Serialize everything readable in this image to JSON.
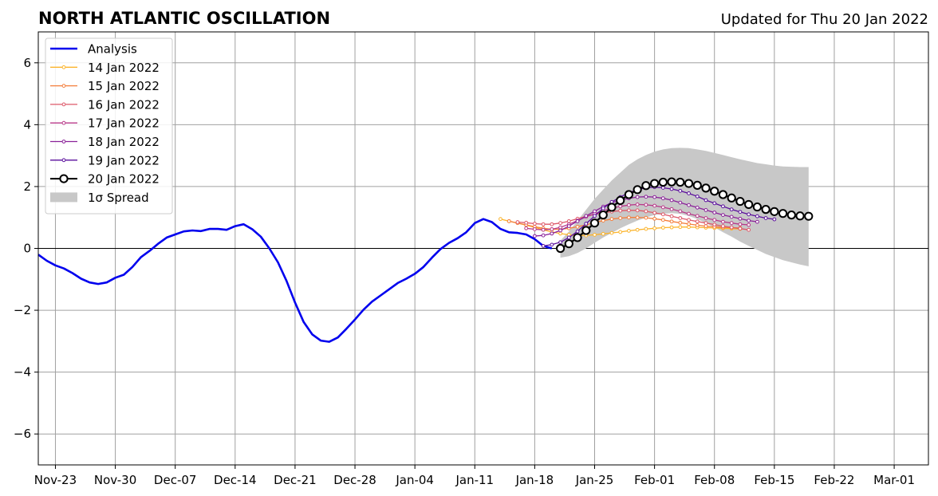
{
  "chart_data": {
    "type": "line",
    "title": "NORTH ATLANTIC OSCILLATION",
    "subtitle": "Updated for Thu 20 Jan 2022",
    "xlabel": "",
    "ylabel": "",
    "grid": true,
    "legend_position": "top-left",
    "x_range": [
      "2021-11-21",
      "2022-03-05"
    ],
    "ylim": [
      -7,
      7
    ],
    "y_ticks": [
      -6,
      -4,
      -2,
      0,
      2,
      4,
      6
    ],
    "x_ticks": [
      {
        "date": "2021-11-23",
        "label": "Nov-23"
      },
      {
        "date": "2021-11-30",
        "label": "Nov-30"
      },
      {
        "date": "2021-12-07",
        "label": "Dec-07"
      },
      {
        "date": "2021-12-14",
        "label": "Dec-14"
      },
      {
        "date": "2021-12-21",
        "label": "Dec-21"
      },
      {
        "date": "2021-12-28",
        "label": "Dec-28"
      },
      {
        "date": "2022-01-04",
        "label": "Jan-04"
      },
      {
        "date": "2022-01-11",
        "label": "Jan-11"
      },
      {
        "date": "2022-01-18",
        "label": "Jan-18"
      },
      {
        "date": "2022-01-25",
        "label": "Jan-25"
      },
      {
        "date": "2022-02-01",
        "label": "Feb-01"
      },
      {
        "date": "2022-02-08",
        "label": "Feb-08"
      },
      {
        "date": "2022-02-15",
        "label": "Feb-15"
      },
      {
        "date": "2022-02-22",
        "label": "Feb-22"
      },
      {
        "date": "2022-03-01",
        "label": "Mar-01"
      }
    ],
    "analysis": {
      "name": "Analysis",
      "color": "#0000ee",
      "start": "2021-11-21",
      "values": [
        -0.2,
        -0.4,
        -0.55,
        -0.65,
        -0.8,
        -0.98,
        -1.1,
        -1.15,
        -1.1,
        -0.95,
        -0.85,
        -0.6,
        -0.28,
        -0.08,
        0.15,
        0.35,
        0.45,
        0.55,
        0.58,
        0.56,
        0.63,
        0.63,
        0.6,
        0.72,
        0.78,
        0.62,
        0.38,
        0.0,
        -0.45,
        -1.05,
        -1.75,
        -2.38,
        -2.78,
        -2.98,
        -3.02,
        -2.88,
        -2.6,
        -2.3,
        -1.98,
        -1.72,
        -1.52,
        -1.32,
        -1.12,
        -0.98,
        -0.82,
        -0.6,
        -0.3,
        -0.02,
        0.18,
        0.33,
        0.52,
        0.82,
        0.95,
        0.85,
        0.63,
        0.52,
        0.5,
        0.45,
        0.3,
        0.08,
        0.0
      ]
    },
    "forecasts": [
      {
        "name": "14 Jan 2022",
        "color": "#fbb42b",
        "start": "2022-01-14",
        "values": [
          0.95,
          0.88,
          0.82,
          0.75,
          0.68,
          0.6,
          0.53,
          0.48,
          0.44,
          0.42,
          0.42,
          0.44,
          0.47,
          0.5,
          0.53,
          0.57,
          0.6,
          0.63,
          0.65,
          0.67,
          0.68,
          0.69,
          0.69,
          0.68,
          0.67,
          0.66,
          0.65,
          0.64,
          0.63
        ]
      },
      {
        "name": "15 Jan 2022",
        "color": "#f47e3b",
        "start": "2022-01-15",
        "values": [
          0.88,
          0.82,
          0.76,
          0.7,
          0.65,
          0.62,
          0.62,
          0.65,
          0.7,
          0.76,
          0.83,
          0.9,
          0.95,
          0.98,
          1.0,
          1.0,
          0.99,
          0.96,
          0.92,
          0.87,
          0.83,
          0.79,
          0.75,
          0.72,
          0.7,
          0.68,
          0.67,
          0.66
        ]
      },
      {
        "name": "16 Jan 2022",
        "color": "#dd5869",
        "start": "2022-01-16",
        "values": [
          0.85,
          0.83,
          0.8,
          0.78,
          0.78,
          0.82,
          0.88,
          0.96,
          1.04,
          1.1,
          1.15,
          1.19,
          1.22,
          1.23,
          1.23,
          1.2,
          1.15,
          1.1,
          1.04,
          0.98,
          0.92,
          0.87,
          0.82,
          0.77,
          0.72,
          0.68,
          0.64,
          0.6
        ]
      },
      {
        "name": "17 Jan 2022",
        "color": "#b83889",
        "start": "2022-01-17",
        "values": [
          0.65,
          0.62,
          0.6,
          0.62,
          0.68,
          0.78,
          0.9,
          1.02,
          1.12,
          1.22,
          1.3,
          1.36,
          1.4,
          1.42,
          1.41,
          1.38,
          1.33,
          1.27,
          1.2,
          1.12,
          1.05,
          0.98,
          0.92,
          0.86,
          0.82,
          0.78,
          0.76
        ]
      },
      {
        "name": "18 Jan 2022",
        "color": "#8a2199",
        "start": "2022-01-18",
        "values": [
          0.4,
          0.42,
          0.48,
          0.58,
          0.72,
          0.88,
          1.05,
          1.2,
          1.35,
          1.48,
          1.56,
          1.62,
          1.66,
          1.67,
          1.66,
          1.62,
          1.56,
          1.48,
          1.4,
          1.32,
          1.24,
          1.16,
          1.08,
          1.02,
          0.96,
          0.9,
          0.86
        ]
      },
      {
        "name": "19 Jan 2022",
        "color": "#5a0e9c",
        "start": "2022-01-19",
        "values": [
          0.08,
          0.12,
          0.2,
          0.35,
          0.55,
          0.8,
          1.05,
          1.3,
          1.5,
          1.66,
          1.8,
          1.9,
          1.96,
          1.98,
          1.96,
          1.92,
          1.86,
          1.78,
          1.68,
          1.56,
          1.46,
          1.36,
          1.26,
          1.18,
          1.1,
          1.04,
          0.98,
          0.94
        ]
      },
      {
        "name": "20 Jan 2022",
        "color": "#000000",
        "start": "2022-01-21",
        "open_circle": true,
        "values": [
          0.0,
          0.15,
          0.35,
          0.58,
          0.82,
          1.08,
          1.33,
          1.55,
          1.74,
          1.9,
          2.03,
          2.1,
          2.14,
          2.15,
          2.14,
          2.1,
          2.04,
          1.95,
          1.85,
          1.74,
          1.63,
          1.52,
          1.42,
          1.34,
          1.26,
          1.19,
          1.13,
          1.08,
          1.05,
          1.04
        ]
      }
    ],
    "spread": {
      "name": "1σ Spread",
      "color": "#c8c8c8",
      "start": "2022-01-21",
      "upper": [
        0.25,
        0.55,
        0.9,
        1.25,
        1.6,
        1.9,
        2.2,
        2.45,
        2.7,
        2.88,
        3.02,
        3.13,
        3.2,
        3.24,
        3.25,
        3.24,
        3.2,
        3.15,
        3.09,
        3.02,
        2.95,
        2.88,
        2.82,
        2.76,
        2.72,
        2.68,
        2.65,
        2.64,
        2.63,
        2.63
      ],
      "lower": [
        -0.3,
        -0.25,
        -0.15,
        0.0,
        0.18,
        0.35,
        0.5,
        0.65,
        0.78,
        0.9,
        1.0,
        1.08,
        1.12,
        1.14,
        1.12,
        1.05,
        0.95,
        0.82,
        0.68,
        0.52,
        0.38,
        0.22,
        0.08,
        -0.05,
        -0.18,
        -0.28,
        -0.38,
        -0.45,
        -0.52,
        -0.58
      ]
    },
    "legend": [
      "Analysis",
      "14 Jan 2022",
      "15 Jan 2022",
      "16 Jan 2022",
      "17 Jan 2022",
      "18 Jan 2022",
      "19 Jan 2022",
      "20 Jan 2022",
      "1σ Spread"
    ]
  }
}
